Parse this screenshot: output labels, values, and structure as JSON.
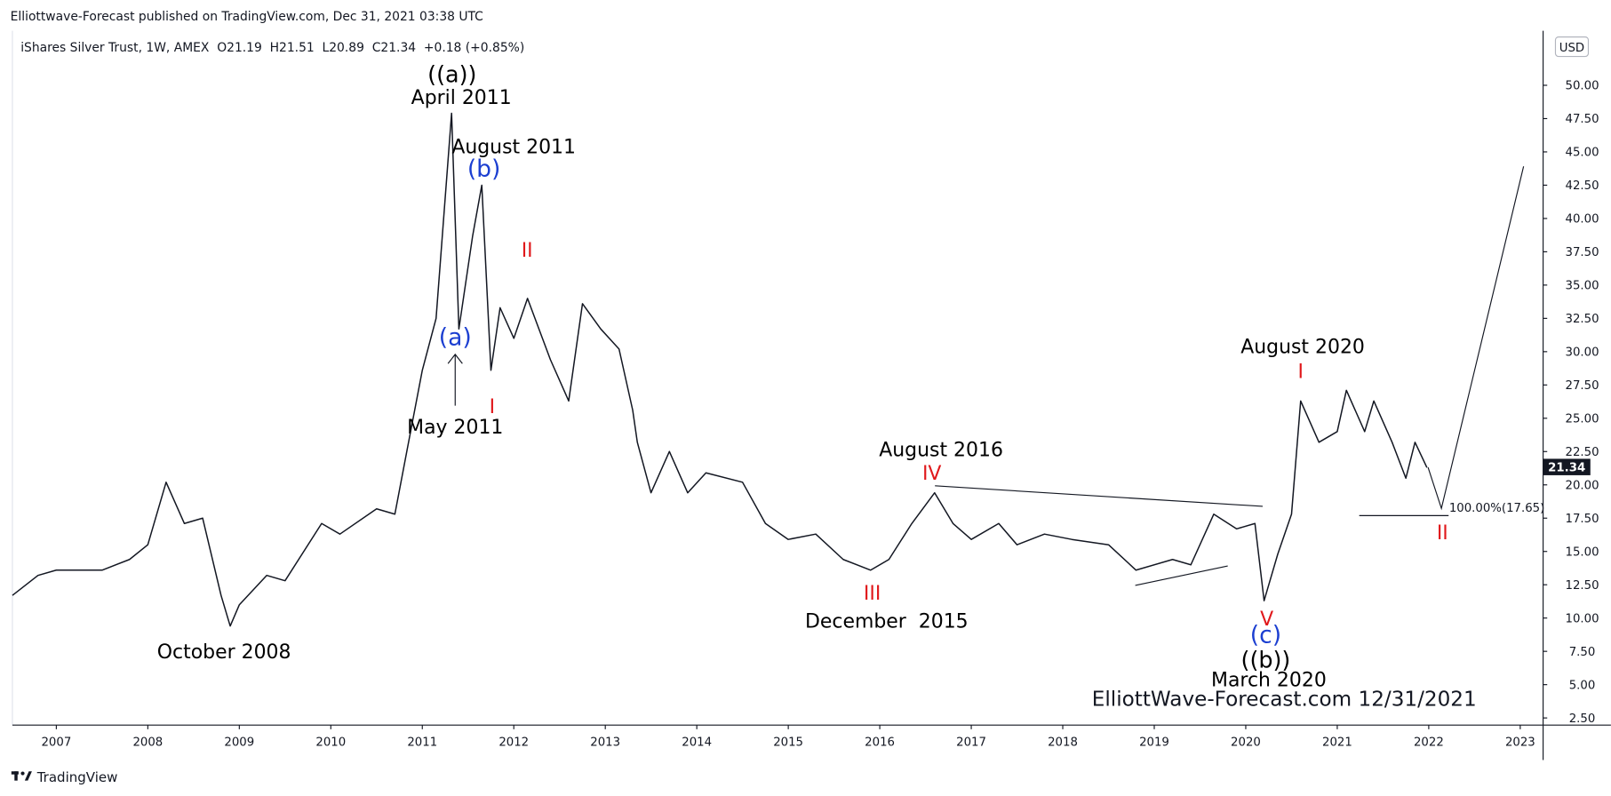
{
  "chart_data": {
    "type": "line",
    "header": "Elliottwave-Forecast published on TradingView.com, Dec 31, 2021 03:38 UTC",
    "symbol_line": "iShares Silver Trust, 1W, AMEX  O21.19  H21.51  L20.89  C21.34  +0.18 (+0.85%)",
    "currency": "USD",
    "watermark": "ElliottWave-Forecast.com 12/31/2021",
    "footer": "TradingView",
    "color": "#131722",
    "last_price": 21.34,
    "x": [
      2006.52,
      2006.8,
      2007.0,
      2007.5,
      2007.8,
      2008.0,
      2008.2,
      2008.4,
      2008.6,
      2008.8,
      2008.9,
      2009.0,
      2009.3,
      2009.5,
      2009.9,
      2010.1,
      2010.5,
      2010.7,
      2010.85,
      2011.0,
      2011.15,
      2011.32,
      2011.4,
      2011.55,
      2011.65,
      2011.75,
      2011.85,
      2012.0,
      2012.15,
      2012.4,
      2012.6,
      2012.75,
      2012.95,
      2013.15,
      2013.3,
      2013.35,
      2013.5,
      2013.7,
      2013.9,
      2014.1,
      2014.5,
      2014.75,
      2015.0,
      2015.3,
      2015.6,
      2015.9,
      2016.1,
      2016.35,
      2016.6,
      2016.8,
      2017.0,
      2017.3,
      2017.5,
      2017.8,
      2018.1,
      2018.5,
      2018.8,
      2019.2,
      2019.4,
      2019.65,
      2019.9,
      2020.1,
      2020.2,
      2020.35,
      2020.5,
      2020.6,
      2020.8,
      2021.0,
      2021.1,
      2021.3,
      2021.4,
      2021.6,
      2021.75,
      2021.85,
      2021.98
    ],
    "values": [
      11.7,
      13.2,
      13.6,
      13.6,
      14.4,
      15.5,
      20.2,
      17.1,
      17.5,
      11.7,
      9.4,
      11.0,
      13.2,
      12.8,
      17.1,
      16.3,
      18.2,
      17.8,
      23.2,
      28.6,
      32.5,
      47.9,
      31.7,
      38.7,
      42.5,
      28.6,
      33.3,
      31.0,
      34.0,
      29.4,
      26.3,
      33.6,
      31.7,
      30.2,
      25.6,
      23.2,
      19.4,
      22.5,
      19.4,
      20.9,
      20.2,
      17.1,
      15.9,
      16.3,
      14.4,
      13.6,
      14.4,
      17.1,
      19.4,
      17.1,
      15.9,
      17.1,
      15.5,
      16.3,
      15.9,
      15.5,
      13.6,
      14.4,
      14.0,
      17.8,
      16.7,
      17.1,
      11.3,
      14.8,
      17.8,
      26.3,
      23.2,
      24.0,
      27.1,
      24.0,
      26.3,
      23.2,
      20.5,
      23.2,
      21.3
    ],
    "xlim": [
      2006.52,
      2023.25
    ],
    "xticks": [
      2007,
      2008,
      2009,
      2010,
      2011,
      2012,
      2013,
      2014,
      2015,
      2016,
      2017,
      2018,
      2019,
      2020,
      2021,
      2022,
      2023
    ],
    "ylim": [
      1.96,
      54.09
    ],
    "yticks": [
      {
        "value": 2.5,
        "label": "2.50"
      },
      {
        "value": 5,
        "label": "5.00"
      },
      {
        "value": 7.5,
        "label": "7.50"
      },
      {
        "value": 10,
        "label": "10.00"
      },
      {
        "value": 12.5,
        "label": "12.50"
      },
      {
        "value": 15,
        "label": "15.00"
      },
      {
        "value": 17.5,
        "label": "17.50"
      },
      {
        "value": 20,
        "label": "20.00"
      },
      {
        "value": 22.5,
        "label": "22.50"
      },
      {
        "value": 25,
        "label": "25.00"
      },
      {
        "value": 27.5,
        "label": "27.50"
      },
      {
        "value": 30,
        "label": "30.00"
      },
      {
        "value": 32.5,
        "label": "32.50"
      },
      {
        "value": 35,
        "label": "35.00"
      },
      {
        "value": 37.5,
        "label": "37.50"
      },
      {
        "value": 40,
        "label": "40.00"
      },
      {
        "value": 42.5,
        "label": "42.50"
      },
      {
        "value": 45,
        "label": "45.00"
      },
      {
        "value": 47.5,
        "label": "47.50"
      },
      {
        "value": 50,
        "label": "50.00"
      }
    ],
    "annotations": [
      {
        "text": "((a))",
        "color": "#000000"
      },
      {
        "text": "April 2011",
        "color": "#000000"
      },
      {
        "text": "August 2011",
        "color": "#000000"
      },
      {
        "text": "(b)",
        "color": "#1c3fd1"
      },
      {
        "text": "II",
        "color": "#e0181b"
      },
      {
        "text": "(a)",
        "color": "#1c3fd1"
      },
      {
        "text": "I",
        "color": "#e0181b"
      },
      {
        "text": "May 2011",
        "color": "#000000"
      },
      {
        "text": "October 2008",
        "color": "#000000"
      },
      {
        "text": "August 2016",
        "color": "#000000"
      },
      {
        "text": "IV",
        "color": "#e0181b"
      },
      {
        "text": "III",
        "color": "#e0181b"
      },
      {
        "text": "December  2015",
        "color": "#000000"
      },
      {
        "text": "August 2020",
        "color": "#000000"
      },
      {
        "text": "I",
        "color": "#e0181b"
      },
      {
        "text": "V",
        "color": "#e0181b"
      },
      {
        "text": "(c)",
        "color": "#1c3fd1"
      },
      {
        "text": "((b))",
        "color": "#000000"
      },
      {
        "text": "March 2020",
        "color": "#000000"
      },
      {
        "text": "II",
        "color": "#e0181b"
      },
      {
        "text": "100.00%(17.65)",
        "color": "#131722"
      }
    ]
  }
}
